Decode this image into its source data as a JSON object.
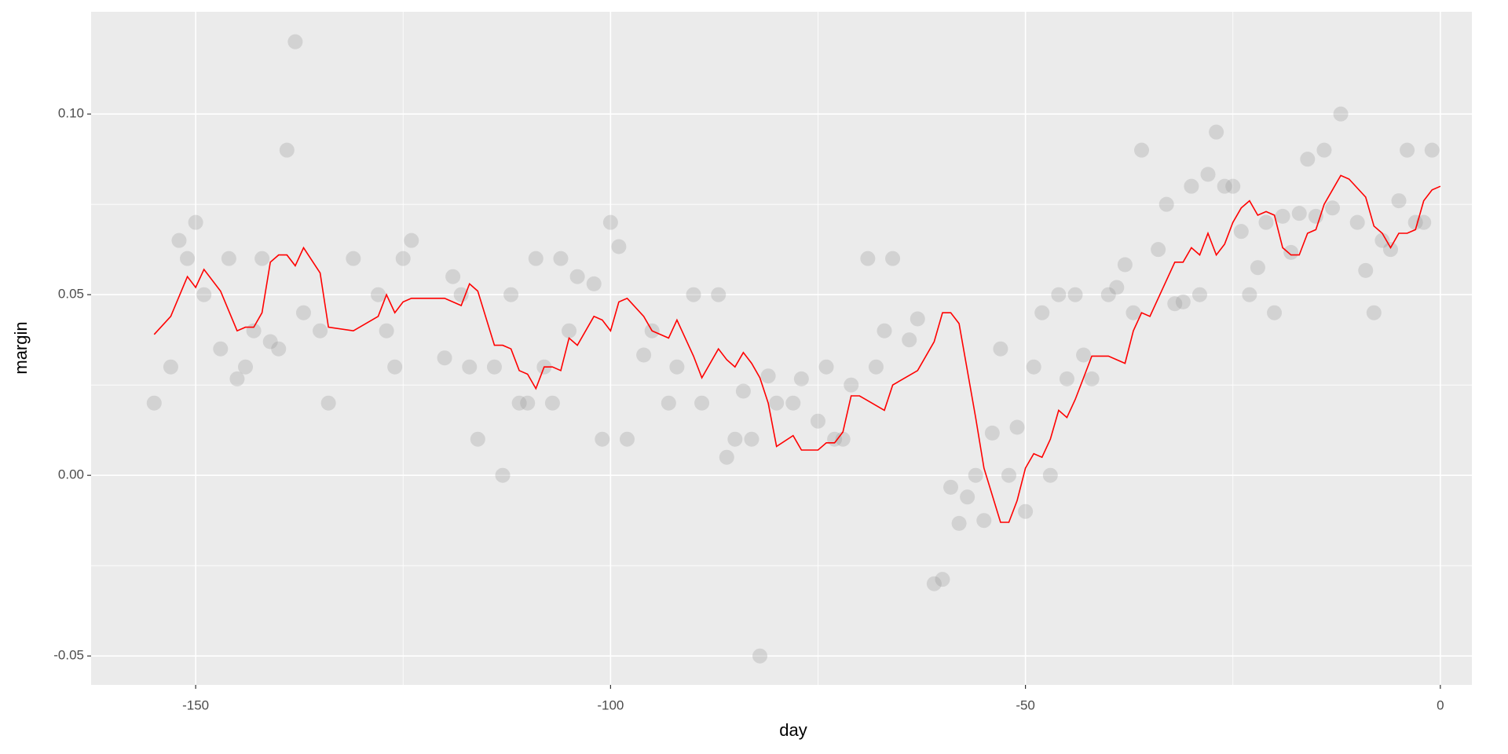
{
  "chart_data": {
    "type": "scatter",
    "x_label": "day",
    "y_label": "margin",
    "xlim": [
      -162.6,
      3.8
    ],
    "ylim": [
      -0.058,
      0.1283
    ],
    "xticks": [
      -150,
      -100,
      -50,
      0
    ],
    "yticks": [
      -0.05,
      {
        "value": 0,
        "label": "0.00"
      },
      0.05,
      {
        "value": 0.1,
        "label": "0.10"
      }
    ],
    "grid": true,
    "series": [
      {
        "type": "scatter",
        "color": "#999999",
        "x": [
          -155,
          -153,
          -152,
          -151,
          -150,
          -149,
          -147,
          -146,
          -145,
          -144,
          -143,
          -142,
          -141,
          -140,
          -139,
          -138,
          -137,
          -135,
          -134,
          -131,
          -128,
          -127,
          -126,
          -125,
          -124,
          -120,
          -119,
          -118,
          -117,
          -116,
          -114,
          -113,
          -112,
          -111,
          -110,
          -109,
          -108,
          -107,
          -106,
          -105,
          -104,
          -102,
          -101,
          -100,
          -99,
          -98,
          -96,
          -95,
          -93,
          -92,
          -90,
          -89,
          -87,
          -86,
          -85,
          -84,
          -83,
          -82,
          -81,
          -80,
          -78,
          -77,
          -75,
          -74,
          -73,
          -72,
          -71,
          -69,
          -68,
          -67,
          -66,
          -64,
          -63,
          -61,
          -60,
          -59,
          -58,
          -57,
          -56,
          -55,
          -54,
          -53,
          -52,
          -51,
          -50,
          -49,
          -48,
          -47,
          -46,
          -45,
          -44,
          -43,
          -42,
          -40,
          -39,
          -38,
          -37,
          -36,
          -34,
          -33,
          -32,
          -31,
          -30,
          -29,
          -28,
          -27,
          -26,
          -25,
          -24,
          -23,
          -22,
          -21,
          -20,
          -19,
          -18,
          -17,
          -16,
          -15,
          -14,
          -13,
          -12,
          -10,
          -9,
          -8,
          -7,
          -6,
          -5,
          -4,
          -3,
          -2,
          -1
        ],
        "values": [
          0.02,
          0.03,
          0.065,
          0.06,
          0.07,
          0.05,
          0.035,
          0.06,
          0.0267,
          0.03,
          0.04,
          0.06,
          0.037,
          0.035,
          0.09,
          0.12,
          0.045,
          0.04,
          0.02,
          0.06,
          0.05,
          0.04,
          0.03,
          0.06,
          0.065,
          0.0325,
          0.055,
          0.05,
          0.03,
          0.01,
          0.03,
          0,
          0.05,
          0.02,
          0.02,
          0.06,
          0.03,
          0.02,
          0.06,
          0.04,
          0.055,
          0.053,
          0.01,
          0.07,
          0.0633,
          0.01,
          0.0333,
          0.04,
          0.02,
          0.03,
          0.05,
          0.02,
          0.05,
          0.005,
          0.01,
          0.0233,
          0.01,
          -0.05,
          0.0275,
          0.02,
          0.02,
          0.0267,
          0.015,
          0.03,
          0.01,
          0.01,
          0.025,
          0.06,
          0.03,
          0.04,
          0.06,
          0.0375,
          0.0433,
          -0.03,
          -0.0288,
          -0.0033,
          -0.0133,
          -0.006,
          0,
          -0.0125,
          0.0117,
          0.035,
          0,
          0.0133,
          -0.01,
          0.03,
          0.045,
          0,
          0.05,
          0.0267,
          0.05,
          0.0333,
          0.0267,
          0.05,
          0.052,
          0.0583,
          0.045,
          0.09,
          0.0625,
          0.075,
          0.0475,
          0.048,
          0.08,
          0.05,
          0.0833,
          0.095,
          0.08,
          0.08,
          0.0675,
          0.05,
          0.0575,
          0.07,
          0.045,
          0.0717,
          0.0617,
          0.0725,
          0.0875,
          0.0717,
          0.09,
          0.074,
          0.1,
          0.07,
          0.0567,
          0.045,
          0.065,
          0.0625,
          0.076,
          0.09,
          0.07,
          0.07,
          0.09
        ]
      },
      {
        "type": "line",
        "color": "#ff0000",
        "x": [
          -155,
          -153,
          -151,
          -150,
          -149,
          -147,
          -145,
          -144,
          -143,
          -142,
          -141,
          -140,
          -139,
          -138,
          -137,
          -135,
          -134,
          -131,
          -128,
          -127,
          -126,
          -125,
          -124,
          -120,
          -119,
          -118,
          -117,
          -116,
          -114,
          -113,
          -112,
          -111,
          -110,
          -109,
          -108,
          -107,
          -106,
          -105,
          -104,
          -102,
          -101,
          -100,
          -99,
          -98,
          -96,
          -95,
          -93,
          -92,
          -90,
          -89,
          -87,
          -86,
          -85,
          -84,
          -83,
          -82,
          -81,
          -80,
          -78,
          -77,
          -75,
          -74,
          -73,
          -72,
          -71,
          -70,
          -67,
          -66,
          -63,
          -61,
          -60,
          -59,
          -58,
          -56,
          -55,
          -53,
          -52,
          -51,
          -50,
          -49,
          -48,
          -47,
          -46,
          -45,
          -44,
          -43,
          -42,
          -40,
          -39,
          -38,
          -37,
          -36,
          -35,
          -33,
          -32,
          -31,
          -30,
          -29,
          -28,
          -27,
          -26,
          -25,
          -24,
          -23,
          -22,
          -21,
          -20,
          -19,
          -18,
          -17,
          -16,
          -15,
          -14,
          -13,
          -12,
          -11,
          -9,
          -8,
          -7,
          -6,
          -5,
          -4,
          -3,
          -2,
          -1,
          0
        ],
        "values": [
          0.039,
          0.044,
          0.055,
          0.052,
          0.057,
          0.051,
          0.04,
          0.041,
          0.041,
          0.045,
          0.059,
          0.061,
          0.061,
          0.058,
          0.063,
          0.056,
          0.041,
          0.04,
          0.044,
          0.05,
          0.045,
          0.048,
          0.049,
          0.049,
          0.048,
          0.047,
          0.053,
          0.051,
          0.036,
          0.036,
          0.035,
          0.029,
          0.028,
          0.024,
          0.03,
          0.03,
          0.029,
          0.038,
          0.036,
          0.044,
          0.043,
          0.04,
          0.048,
          0.049,
          0.044,
          0.04,
          0.038,
          0.043,
          0.033,
          0.027,
          0.035,
          0.032,
          0.03,
          0.034,
          0.031,
          0.027,
          0.02,
          0.008,
          0.011,
          0.007,
          0.007,
          0.009,
          0.009,
          0.012,
          0.022,
          0.022,
          0.018,
          0.025,
          0.029,
          0.037,
          0.045,
          0.045,
          0.042,
          0.016,
          0.002,
          -0.013,
          -0.013,
          -0.007,
          0.002,
          0.006,
          0.005,
          0.01,
          0.018,
          0.016,
          0.021,
          0.027,
          0.033,
          0.033,
          0.032,
          0.031,
          0.04,
          0.045,
          0.044,
          0.054,
          0.059,
          0.059,
          0.063,
          0.061,
          0.067,
          0.061,
          0.064,
          0.07,
          0.074,
          0.076,
          0.072,
          0.073,
          0.072,
          0.063,
          0.061,
          0.061,
          0.067,
          0.068,
          0.075,
          0.079,
          0.083,
          0.082,
          0.077,
          0.069,
          0.067,
          0.063,
          0.067,
          0.067,
          0.068,
          0.076,
          0.079,
          0.08
        ]
      }
    ]
  }
}
